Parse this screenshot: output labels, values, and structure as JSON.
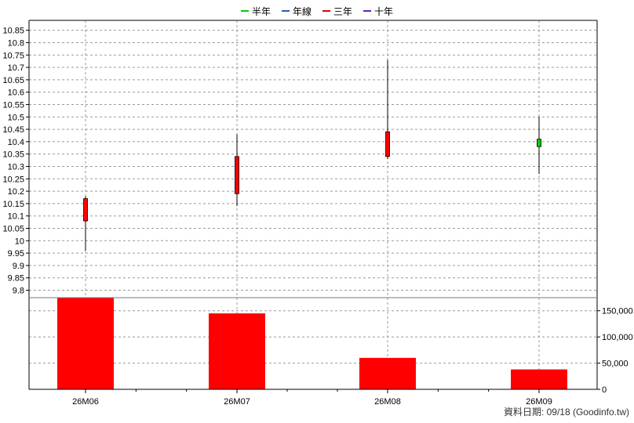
{
  "legend": {
    "items": [
      {
        "label": "半年",
        "color": "#00cc00"
      },
      {
        "label": "年線",
        "color": "#1f5fbf"
      },
      {
        "label": "三年",
        "color": "#e00000"
      },
      {
        "label": "十年",
        "color": "#6a1fbf"
      }
    ]
  },
  "footer": {
    "text": "資料日期: 09/18  (Goodinfo.tw)"
  },
  "chart_data": [
    {
      "type": "candlestick",
      "title": "",
      "categories": [
        "26M06",
        "26M07",
        "26M08",
        "26M09"
      ],
      "series": [
        {
          "open": 10.08,
          "close": 10.17,
          "high": 10.18,
          "low": 9.96,
          "color": "#ff0000"
        },
        {
          "open": 10.19,
          "close": 10.34,
          "high": 10.43,
          "low": 10.14,
          "color": "#ff0000"
        },
        {
          "open": 10.34,
          "close": 10.44,
          "high": 10.73,
          "low": 10.33,
          "color": "#ff0000"
        },
        {
          "open": 10.41,
          "close": 10.38,
          "high": 10.5,
          "low": 10.27,
          "color": "#00cc00"
        }
      ],
      "y_ticks": [
        "9.8",
        "9.85",
        "9.9",
        "9.95",
        "10",
        "10.05",
        "10.1",
        "10.15",
        "10.2",
        "10.25",
        "10.3",
        "10.35",
        "10.4",
        "10.45",
        "10.5",
        "10.55",
        "10.6",
        "10.65",
        "10.7",
        "10.75",
        "10.8",
        "10.85"
      ],
      "y_tick_values": [
        9.8,
        9.85,
        9.9,
        9.95,
        10.0,
        10.05,
        10.1,
        10.15,
        10.2,
        10.25,
        10.3,
        10.35,
        10.4,
        10.45,
        10.5,
        10.55,
        10.6,
        10.65,
        10.7,
        10.75,
        10.8,
        10.85
      ],
      "ylim": [
        9.77,
        10.89
      ],
      "grid": true
    },
    {
      "type": "bar",
      "categories": [
        "26M06",
        "26M07",
        "26M08",
        "26M09"
      ],
      "values": [
        175000,
        145000,
        60000,
        38000
      ],
      "color": "#ff0000",
      "y_ticks": [
        "0",
        "50,000",
        "100,000",
        "150,000"
      ],
      "y_tick_values": [
        0,
        50000,
        100000,
        150000
      ],
      "ylim": [
        0,
        175000
      ],
      "grid": true
    }
  ]
}
